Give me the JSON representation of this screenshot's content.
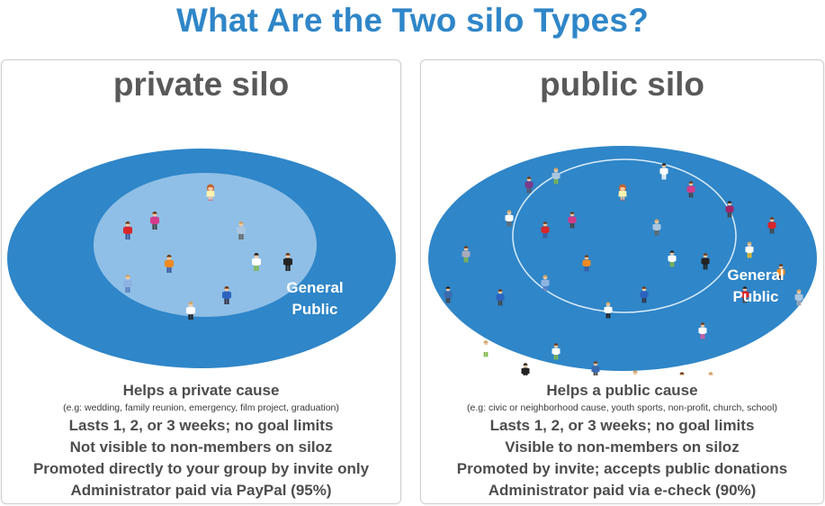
{
  "title": "What Are the Two silo Types?",
  "colors": {
    "title": "#2f86c8",
    "outer_ellipse": "#2f86c8",
    "inner_ellipse": "#8fbfe6",
    "text": "#4d4d4d"
  },
  "private": {
    "title": "private silo",
    "general_public_line1": "General",
    "general_public_line2": "Public",
    "cause": "Helps a private cause",
    "example": "(e.g: wedding, family reunion, emergency, film project, graduation)",
    "duration": "Lasts 1, 2, or 3 weeks; no goal limits",
    "visibility": "Not visible to non-members on siloz",
    "promotion": "Promoted directly to your group by invite only",
    "payout": "Administrator paid via PayPal (95%)"
  },
  "public": {
    "title": "public silo",
    "general_public_line1": "General",
    "general_public_line2": "Public",
    "cause": "Helps a public cause",
    "example": "(e.g: civic or neighborhood cause, youth sports, non-profit, church, school)",
    "duration": "Lasts 1, 2, or 3 weeks; no goal limits",
    "visibility": "Visible to non-members on siloz",
    "promotion": "Promoted by invite; accepts public donations",
    "payout": "Administrator paid via e-check (90%)"
  }
}
